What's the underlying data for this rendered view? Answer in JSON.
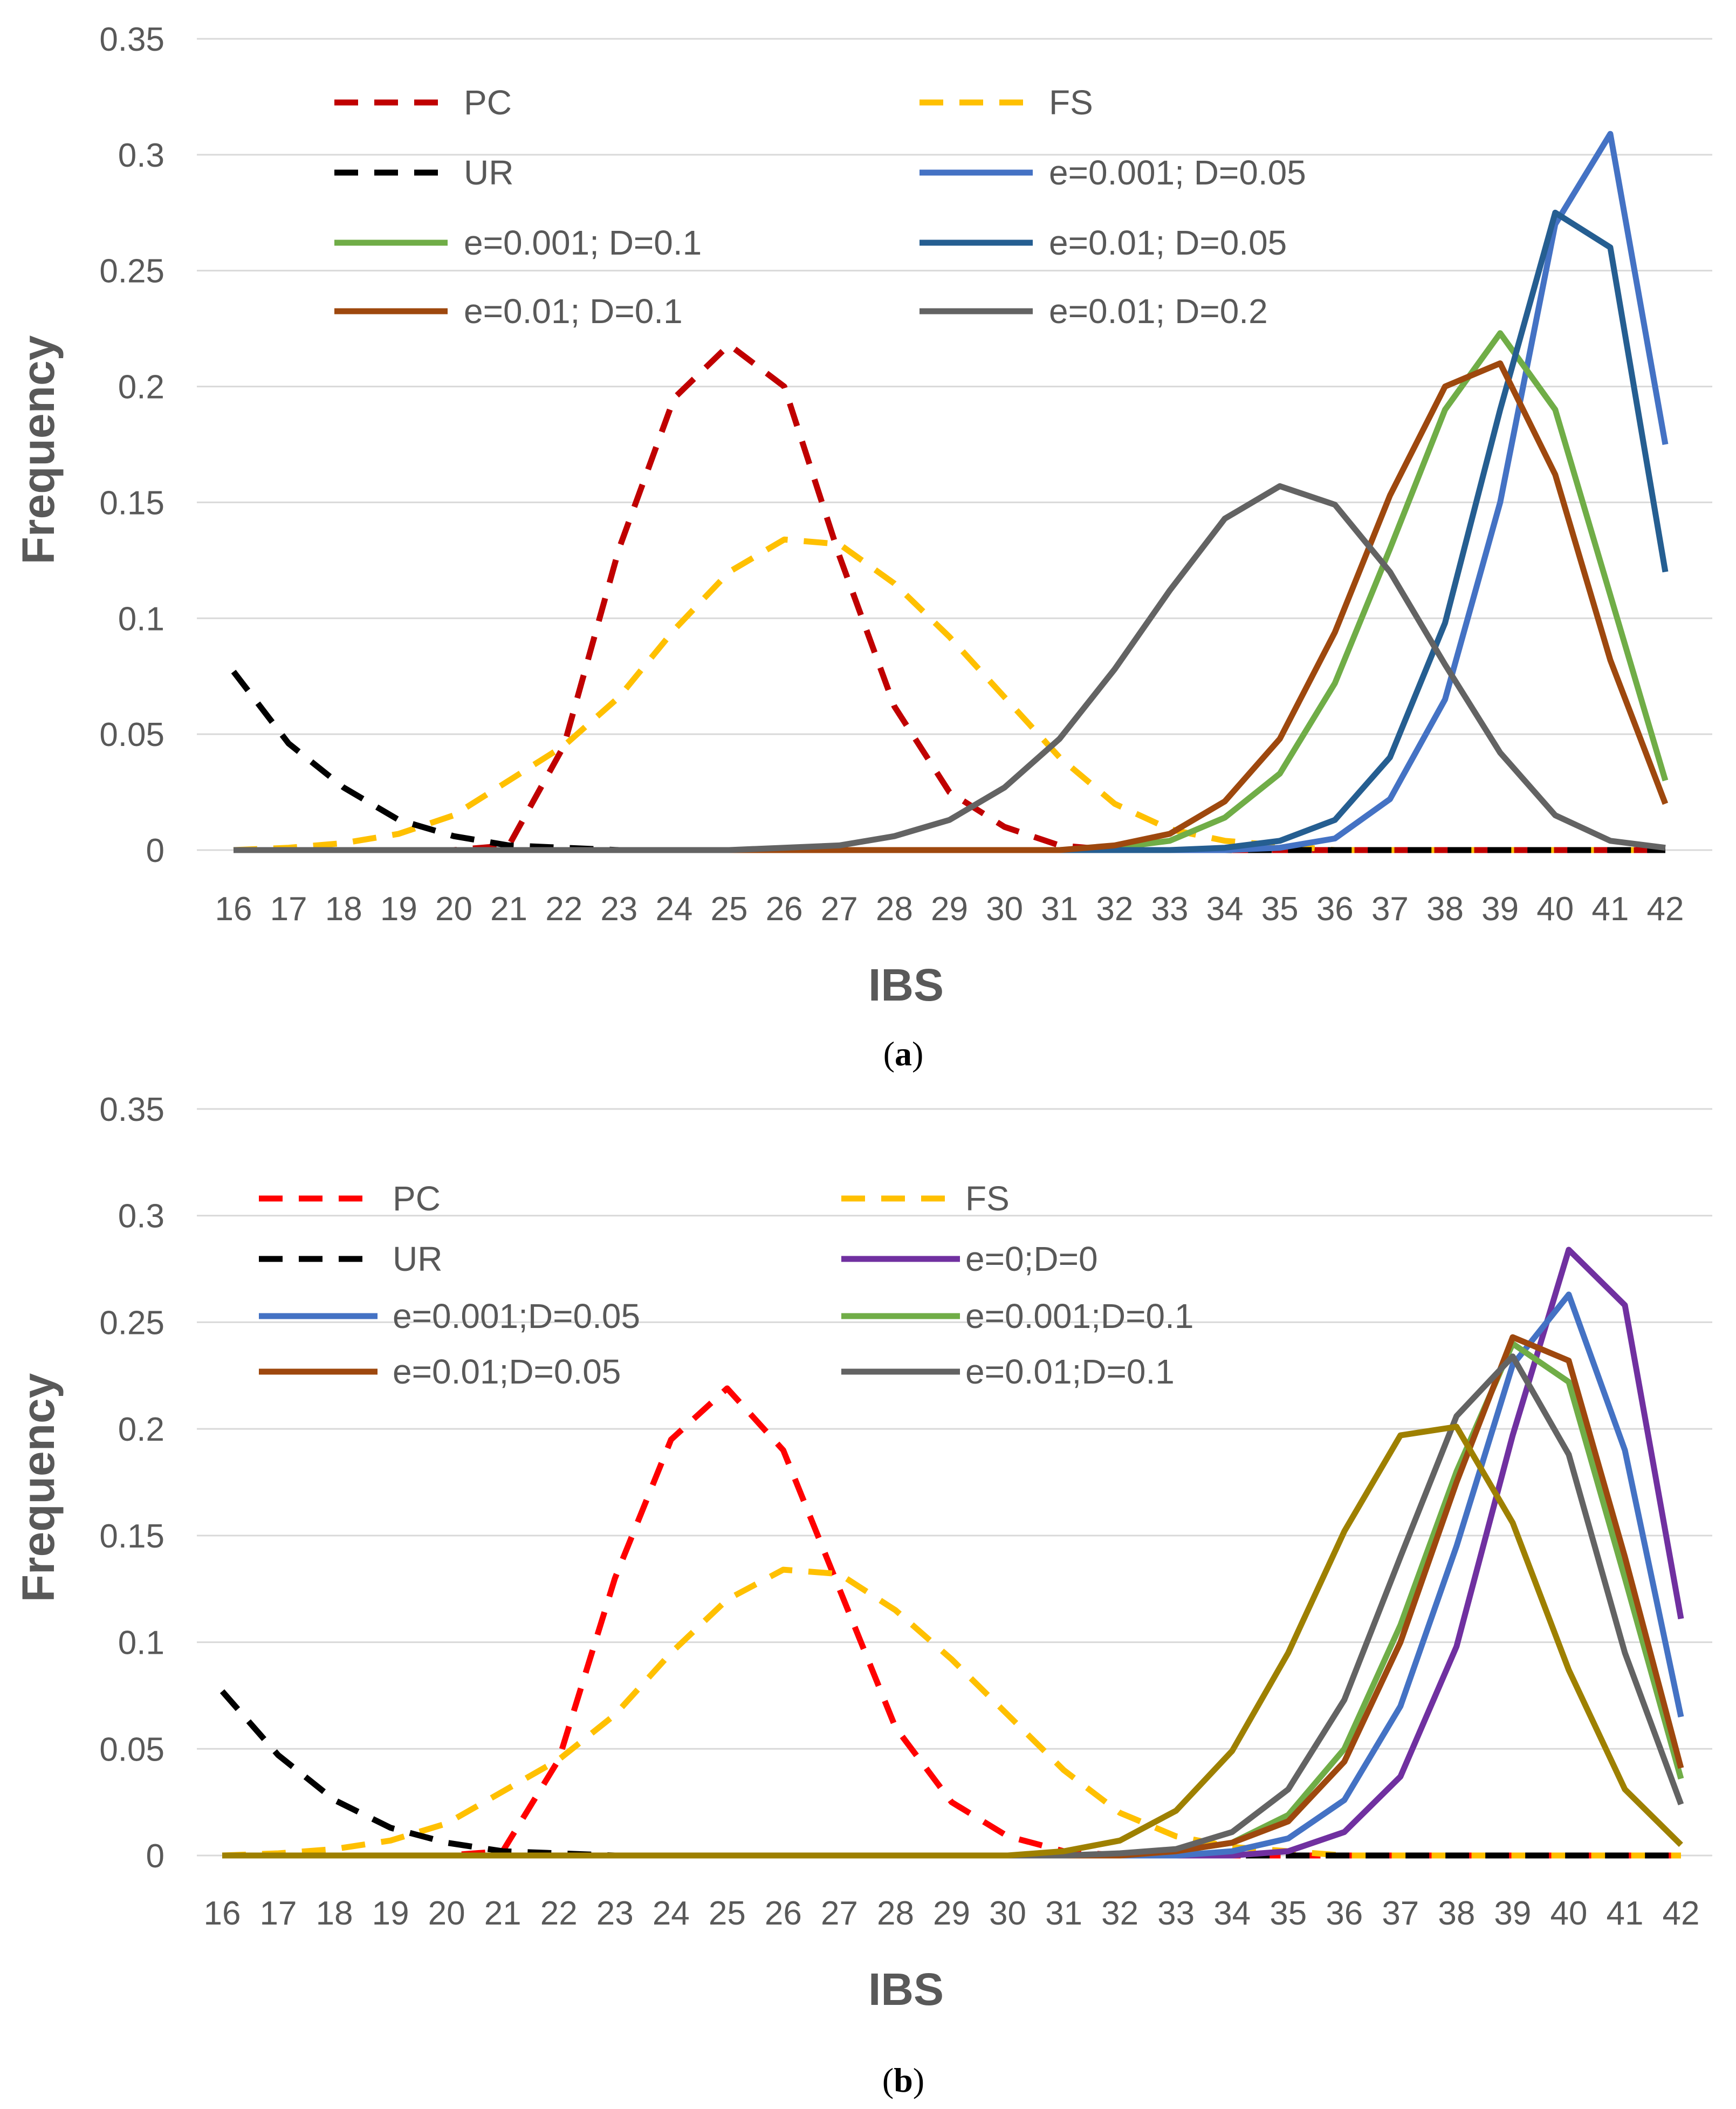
{
  "chart_data": [
    {
      "panel": "a",
      "type": "line",
      "caption_letter": "a",
      "xlabel": "IBS",
      "ylabel": "Frequency",
      "ylim": [
        0,
        0.35
      ],
      "grid": true,
      "legend_position": "top",
      "y_ticks": [
        "0",
        "0.05",
        "0.1",
        "0.15",
        "0.2",
        "0.25",
        "0.3",
        "0.35"
      ],
      "categories": [
        "16",
        "17",
        "18",
        "19",
        "20",
        "21",
        "22",
        "23",
        "24",
        "25",
        "26",
        "27",
        "28",
        "29",
        "30",
        "31",
        "32",
        "33",
        "34",
        "35",
        "36",
        "37",
        "38",
        "39",
        "40",
        "41",
        "42"
      ],
      "series": [
        {
          "name": "PC",
          "color": "#c00000",
          "dashed": true,
          "values": [
            0,
            0,
            0,
            0,
            0,
            0.002,
            0.045,
            0.13,
            0.195,
            0.218,
            0.2,
            0.127,
            0.062,
            0.025,
            0.01,
            0.002,
            0,
            0,
            0,
            0,
            0,
            0,
            0,
            0,
            0,
            0,
            0
          ]
        },
        {
          "name": "FS",
          "color": "#ffc000",
          "dashed": true,
          "values": [
            0,
            0.001,
            0.003,
            0.007,
            0.015,
            0.03,
            0.045,
            0.066,
            0.095,
            0.12,
            0.134,
            0.132,
            0.115,
            0.092,
            0.066,
            0.04,
            0.02,
            0.009,
            0.004,
            0.002,
            0,
            0,
            0,
            0,
            0,
            0,
            0
          ]
        },
        {
          "name": "UR",
          "color": "#000000",
          "dashed": true,
          "values": [
            0.077,
            0.046,
            0.027,
            0.013,
            0.006,
            0.002,
            0.001,
            0,
            0,
            0,
            0,
            0,
            0,
            0,
            0,
            0,
            0,
            0,
            0,
            0,
            0,
            0,
            0,
            0,
            0,
            0,
            0
          ]
        },
        {
          "name": "e=0.001; D=0.05",
          "color": "#4472c4",
          "dashed": false,
          "values": [
            0,
            0,
            0,
            0,
            0,
            0,
            0,
            0,
            0,
            0,
            0,
            0,
            0,
            0,
            0,
            0,
            0,
            0,
            0,
            0.001,
            0.005,
            0.022,
            0.065,
            0.15,
            0.27,
            0.309,
            0.175
          ]
        },
        {
          "name": "e=0.001; D=0.1",
          "color": "#70ad47",
          "dashed": false,
          "values": [
            0,
            0,
            0,
            0,
            0,
            0,
            0,
            0,
            0,
            0,
            0,
            0,
            0,
            0,
            0,
            0,
            0.001,
            0.004,
            0.014,
            0.033,
            0.072,
            0.13,
            0.19,
            0.223,
            0.19,
            0.11,
            0.03
          ]
        },
        {
          "name": "e=0.01; D=0.05",
          "color": "#255e91",
          "dashed": false,
          "values": [
            0,
            0,
            0,
            0,
            0,
            0,
            0,
            0,
            0,
            0,
            0,
            0,
            0,
            0,
            0,
            0,
            0,
            0,
            0.001,
            0.004,
            0.013,
            0.04,
            0.098,
            0.19,
            0.275,
            0.26,
            0.12
          ]
        },
        {
          "name": "e=0.01; D=0.1",
          "color": "#9e480e",
          "dashed": false,
          "values": [
            0,
            0,
            0,
            0,
            0,
            0,
            0,
            0,
            0,
            0,
            0,
            0,
            0,
            0,
            0,
            0,
            0.002,
            0.007,
            0.021,
            0.048,
            0.094,
            0.153,
            0.2,
            0.21,
            0.162,
            0.082,
            0.02
          ]
        },
        {
          "name": "e=0.01; D=0.2",
          "color": "#636363",
          "dashed": false,
          "values": [
            0,
            0,
            0,
            0,
            0,
            0,
            0,
            0,
            0,
            0,
            0.001,
            0.002,
            0.006,
            0.013,
            0.027,
            0.048,
            0.078,
            0.112,
            0.143,
            0.157,
            0.149,
            0.12,
            0.08,
            0.042,
            0.015,
            0.004,
            0.001
          ]
        }
      ]
    },
    {
      "panel": "b",
      "type": "line",
      "caption_letter": "b",
      "xlabel": "IBS",
      "ylabel": "Frequency",
      "ylim": [
        0,
        0.35
      ],
      "grid": true,
      "legend_position": "top",
      "y_ticks": [
        "0",
        "0.05",
        "0.1",
        "0.15",
        "0.2",
        "0.25",
        "0.3",
        "0.35"
      ],
      "categories": [
        "16",
        "17",
        "18",
        "19",
        "20",
        "21",
        "22",
        "23",
        "24",
        "25",
        "26",
        "27",
        "28",
        "29",
        "30",
        "31",
        "32",
        "33",
        "34",
        "35",
        "36",
        "37",
        "38",
        "39",
        "40",
        "41",
        "42"
      ],
      "series": [
        {
          "name": "PC",
          "color": "#ff0000",
          "dashed": true,
          "values": [
            0,
            0,
            0,
            0,
            0,
            0.002,
            0.045,
            0.13,
            0.195,
            0.219,
            0.19,
            0.125,
            0.06,
            0.025,
            0.009,
            0.002,
            0,
            0,
            0,
            0,
            0,
            0,
            0,
            0,
            0,
            0,
            0
          ]
        },
        {
          "name": "FS",
          "color": "#ffc000",
          "dashed": true,
          "values": [
            0,
            0.001,
            0.003,
            0.007,
            0.015,
            0.03,
            0.045,
            0.066,
            0.095,
            0.12,
            0.134,
            0.132,
            0.115,
            0.092,
            0.066,
            0.04,
            0.02,
            0.009,
            0.004,
            0.002,
            0,
            0,
            0,
            0,
            0,
            0,
            0
          ]
        },
        {
          "name": "UR",
          "color": "#000000",
          "dashed": true,
          "values": [
            0.077,
            0.047,
            0.026,
            0.013,
            0.006,
            0.002,
            0.001,
            0,
            0,
            0,
            0,
            0,
            0,
            0,
            0,
            0,
            0,
            0,
            0,
            0,
            0,
            0,
            0,
            0,
            0,
            0,
            0
          ]
        },
        {
          "name": "e=0;D=0",
          "color": "#7030a0",
          "dashed": false,
          "values": [
            0,
            0,
            0,
            0,
            0,
            0,
            0,
            0,
            0,
            0,
            0,
            0,
            0,
            0,
            0,
            0,
            0,
            0,
            0,
            0.002,
            0.011,
            0.037,
            0.098,
            0.197,
            0.284,
            0.258,
            0.111
          ]
        },
        {
          "name": "e=0.001;D=0.05",
          "color": "#4472c4",
          "dashed": false,
          "values": [
            0,
            0,
            0,
            0,
            0,
            0,
            0,
            0,
            0,
            0,
            0,
            0,
            0,
            0,
            0,
            0,
            0,
            0,
            0.002,
            0.008,
            0.026,
            0.07,
            0.145,
            0.23,
            0.263,
            0.19,
            0.065
          ]
        },
        {
          "name": "e=0.001;D=0.1",
          "color": "#70ad47",
          "dashed": false,
          "values": [
            0,
            0,
            0,
            0,
            0,
            0,
            0,
            0,
            0,
            0,
            0,
            0,
            0,
            0,
            0,
            0,
            0,
            0.002,
            0.006,
            0.019,
            0.05,
            0.108,
            0.18,
            0.24,
            0.222,
            0.13,
            0.036
          ]
        },
        {
          "name": "e=0.01;D=0.05",
          "color": "#9e480e",
          "dashed": false,
          "values": [
            0,
            0,
            0,
            0,
            0,
            0,
            0,
            0,
            0,
            0,
            0,
            0,
            0,
            0,
            0,
            0,
            0,
            0.002,
            0.006,
            0.016,
            0.044,
            0.1,
            0.175,
            0.243,
            0.232,
            0.14,
            0.041
          ]
        },
        {
          "name": "e=0.01;D=0.1",
          "color": "#636363",
          "dashed": false,
          "values": [
            0,
            0,
            0,
            0,
            0,
            0,
            0,
            0,
            0,
            0,
            0,
            0,
            0,
            0,
            0,
            0,
            0.001,
            0.003,
            0.011,
            0.031,
            0.073,
            0.14,
            0.206,
            0.234,
            0.188,
            0.095,
            0.024
          ]
        },
        {
          "name": "",
          "color": "#9e8000",
          "dashed": false,
          "values": [
            0,
            0,
            0,
            0,
            0,
            0,
            0,
            0,
            0,
            0,
            0,
            0,
            0,
            0,
            0,
            0.002,
            0.007,
            0.021,
            0.049,
            0.095,
            0.152,
            0.197,
            0.201,
            0.156,
            0.087,
            0.031,
            0.005
          ]
        }
      ]
    }
  ]
}
